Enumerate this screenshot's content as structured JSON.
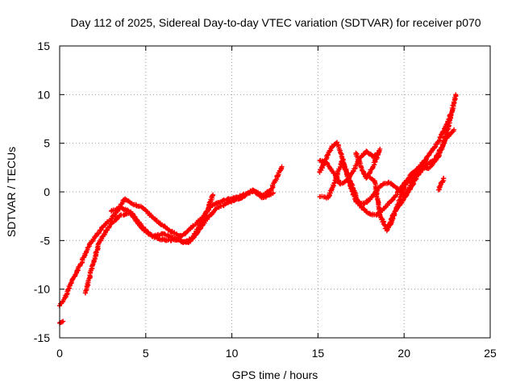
{
  "chart_data": {
    "type": "scatter",
    "title": "Day 112 of 2025, Sidereal Day-to-day VTEC variation (SDTVAR) for receiver p070",
    "xlabel": "GPS time / hours",
    "ylabel": "SDTVAR / TECUs",
    "xlim": [
      0,
      25
    ],
    "ylim": [
      -15,
      15
    ],
    "xticks": [
      0,
      5,
      10,
      15,
      20,
      25
    ],
    "yticks": [
      -15,
      -10,
      -5,
      0,
      5,
      10,
      15
    ],
    "grid": true,
    "marker": "plus",
    "color": "#ff0000",
    "series": [
      {
        "x": [
          0.0,
          0.3,
          0.7,
          1.2,
          1.8,
          2.5,
          3.2,
          3.8,
          4.2,
          4.8,
          5.5,
          6.3,
          7.0,
          7.6,
          8.2,
          8.8,
          9.5,
          10.2,
          10.8,
          11.3,
          11.8,
          12.3,
          12.9
        ],
        "y": [
          -11.7,
          -10.9,
          -9.2,
          -7.5,
          -5.2,
          -3.6,
          -2.4,
          -0.7,
          -1.2,
          -1.6,
          -2.8,
          -3.9,
          -4.6,
          -3.8,
          -2.8,
          -1.4,
          -0.9,
          -0.6,
          -0.2,
          0.1,
          -0.4,
          0.3,
          2.6
        ]
      },
      {
        "x": [
          1.5,
          1.9,
          2.3,
          2.9,
          3.5,
          4.1,
          4.8,
          5.5,
          6.2,
          6.9,
          7.5,
          8.0,
          8.6,
          9.2,
          9.9,
          10.6,
          11.2,
          11.8,
          12.4
        ],
        "y": [
          -10.4,
          -7.6,
          -5.2,
          -3.5,
          -2.4,
          -2.2,
          -3.8,
          -4.7,
          -5.0,
          -4.9,
          -5.2,
          -4.2,
          -2.6,
          -1.6,
          -1.0,
          -0.6,
          0.2,
          -0.6,
          -0.1
        ]
      },
      {
        "x": [
          3.0,
          3.6,
          4.2,
          4.8,
          5.4,
          6.0,
          6.6,
          7.2,
          7.7,
          8.1,
          8.5,
          8.9
        ],
        "y": [
          -2.0,
          -1.6,
          -2.2,
          -3.6,
          -4.6,
          -4.3,
          -4.7,
          -5.2,
          -4.8,
          -3.6,
          -2.2,
          -0.3
        ]
      },
      {
        "x": [
          0.0,
          0.2
        ],
        "y": [
          -13.5,
          -13.3
        ]
      },
      {
        "x": [
          15.1,
          15.4,
          15.8,
          16.1,
          16.4,
          16.8,
          17.2,
          17.7,
          18.1,
          18.6,
          19.1,
          19.6,
          20.1,
          20.6,
          21.1,
          21.6,
          22.0,
          22.4,
          22.8
        ],
        "y": [
          2.0,
          3.2,
          4.6,
          5.1,
          3.6,
          1.0,
          -1.0,
          -1.2,
          -0.6,
          0.6,
          1.0,
          0.4,
          -0.4,
          1.6,
          3.0,
          4.2,
          5.2,
          6.6,
          8.4
        ]
      },
      {
        "x": [
          15.1,
          15.6,
          16.0,
          16.4,
          16.9,
          17.4,
          17.9,
          18.4,
          18.9,
          19.4,
          19.9,
          20.4,
          20.9,
          21.4,
          22.0,
          22.4,
          22.9
        ],
        "y": [
          -0.5,
          -0.6,
          1.2,
          3.2,
          1.0,
          -1.3,
          -2.2,
          -2.4,
          -1.6,
          -0.6,
          0.6,
          1.8,
          2.6,
          2.4,
          3.6,
          5.4,
          6.4
        ]
      },
      {
        "x": [
          15.1,
          15.5,
          15.9,
          16.3,
          16.7,
          17.0,
          17.4,
          17.8,
          18.2,
          18.5
        ],
        "y": [
          3.2,
          3.0,
          2.0,
          0.8,
          1.2,
          2.0,
          3.4,
          4.2,
          3.6,
          3.9
        ]
      },
      {
        "x": [
          18.0,
          18.3,
          18.6,
          19.0,
          19.4,
          19.8,
          20.1,
          20.5,
          20.9,
          21.3,
          21.7,
          22.2,
          22.6,
          23.0
        ],
        "y": [
          1.5,
          1.0,
          -2.4,
          -4.0,
          -2.2,
          -1.2,
          -0.4,
          0.8,
          2.0,
          2.8,
          3.2,
          4.6,
          6.8,
          10.0
        ]
      },
      {
        "x": [
          19.2,
          19.5,
          19.8,
          20.1,
          20.5,
          20.9,
          21.3
        ],
        "y": [
          -3.4,
          -2.0,
          -0.5,
          0.8,
          1.6,
          2.6,
          3.4
        ]
      },
      {
        "x": [
          17.2,
          17.5,
          17.8,
          18.2,
          18.6
        ],
        "y": [
          4.0,
          2.6,
          1.4,
          2.6,
          4.4
        ]
      },
      {
        "x": [
          22.0,
          22.3
        ],
        "y": [
          0.2,
          1.4
        ]
      }
    ]
  }
}
